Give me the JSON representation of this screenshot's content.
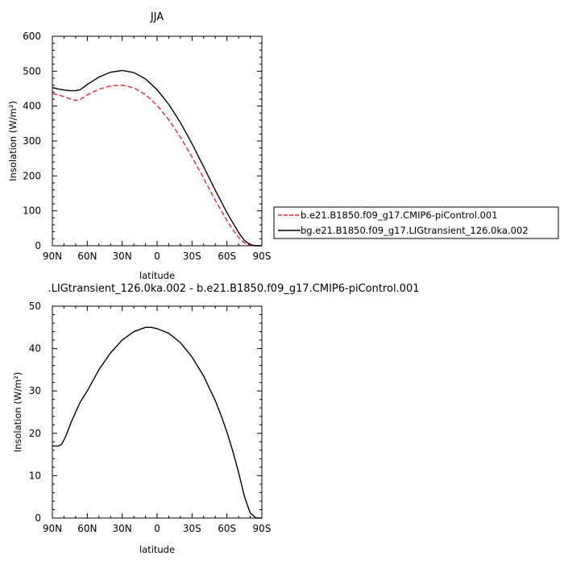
{
  "chart_data": [
    {
      "type": "line",
      "title": "JJA",
      "xlabel": "latitude",
      "ylabel": "Insolation (W/m²)",
      "xlim": [
        90,
        -90
      ],
      "ylim": [
        0,
        600
      ],
      "x_ticks": [
        90,
        60,
        30,
        0,
        -30,
        -60,
        -90
      ],
      "x_tick_labels": [
        "90N",
        "60N",
        "30N",
        "0",
        "30S",
        "60S",
        "90S"
      ],
      "y_ticks": [
        0,
        100,
        200,
        300,
        400,
        500,
        600
      ],
      "y_tick_labels": [
        "0",
        "100",
        "200",
        "300",
        "400",
        "500",
        "600"
      ],
      "grid": false,
      "legend_position": "right, outside plot",
      "series": [
        {
          "name": "b.e21.B1850.f09_g17.CMIP6-piControl.001",
          "color": "#e8262b",
          "dash": "dashed",
          "x": [
            90,
            85,
            80,
            75,
            70,
            66,
            60,
            50,
            40,
            30,
            20,
            10,
            0,
            -10,
            -20,
            -30,
            -40,
            -50,
            -60,
            -65,
            -70,
            -75,
            -80,
            -85,
            -90
          ],
          "y": [
            436,
            432,
            427,
            421,
            416,
            419,
            432,
            448,
            458,
            460,
            452,
            433,
            402,
            361,
            311,
            254,
            193,
            130,
            72,
            46,
            24,
            8,
            1,
            0,
            0
          ]
        },
        {
          "name": "bg.e21.B1850.f09_g17.LIGtransient_126.0ka.002",
          "color": "#000000",
          "dash": "solid",
          "x": [
            90,
            85,
            80,
            75,
            70,
            66,
            60,
            50,
            40,
            30,
            20,
            10,
            0,
            -10,
            -20,
            -30,
            -40,
            -50,
            -60,
            -65,
            -70,
            -75,
            -80,
            -85,
            -90
          ],
          "y": [
            453,
            449,
            446,
            444,
            444,
            447,
            462,
            483,
            497,
            502,
            496,
            478,
            447,
            405,
            353,
            292,
            226,
            159,
            95,
            66,
            38,
            15,
            3,
            0,
            0
          ]
        }
      ]
    },
    {
      "type": "line",
      "title": ".LIGtransient_126.0ka.002 - b.e21.B1850.f09_g17.CMIP6-piControl.001",
      "xlabel": "latitude",
      "ylabel": "Insolation (W/m²)",
      "xlim": [
        90,
        -90
      ],
      "ylim": [
        0,
        50
      ],
      "x_ticks": [
        90,
        60,
        30,
        0,
        -30,
        -60,
        -90
      ],
      "x_tick_labels": [
        "90N",
        "60N",
        "30N",
        "0",
        "30S",
        "60S",
        "90S"
      ],
      "y_ticks": [
        0,
        10,
        20,
        30,
        40,
        50
      ],
      "y_tick_labels": [
        "0",
        "10",
        "20",
        "30",
        "40",
        "50"
      ],
      "grid": false,
      "series": [
        {
          "color": "#000000",
          "dash": "solid",
          "x": [
            90,
            85,
            82,
            78,
            74,
            70,
            66,
            60,
            50,
            40,
            30,
            20,
            10,
            5,
            0,
            -10,
            -20,
            -30,
            -40,
            -50,
            -55,
            -60,
            -65,
            -70,
            -75,
            -80,
            -85,
            -90
          ],
          "y": [
            17,
            17,
            17.4,
            19.6,
            22.5,
            25,
            27.4,
            30,
            35,
            39,
            42,
            44,
            45,
            45,
            44.7,
            43.6,
            41.4,
            38,
            33.5,
            27.7,
            24.2,
            20.3,
            15.8,
            10.8,
            5.1,
            1.2,
            0,
            0
          ]
        }
      ]
    }
  ]
}
